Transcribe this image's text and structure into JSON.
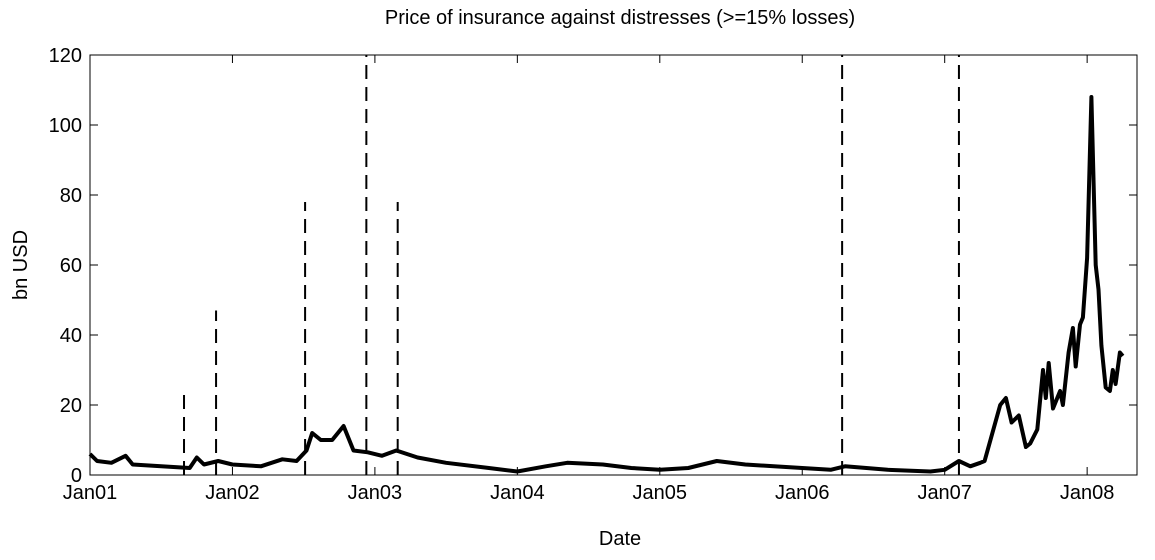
{
  "chart_data": {
    "type": "line",
    "title": "Price of insurance against distresses (>=15% losses)",
    "x_label": "Date",
    "y_label": "bn USD",
    "xlim": [
      2001.0,
      2008.35
    ],
    "ylim": [
      0,
      120
    ],
    "xticks": [
      {
        "value": 2001.0,
        "label": "Jan01"
      },
      {
        "value": 2002.0,
        "label": "Jan02"
      },
      {
        "value": 2003.0,
        "label": "Jan03"
      },
      {
        "value": 2004.0,
        "label": "Jan04"
      },
      {
        "value": 2005.0,
        "label": "Jan05"
      },
      {
        "value": 2006.0,
        "label": "Jan06"
      },
      {
        "value": 2007.0,
        "label": "Jan07"
      },
      {
        "value": 2008.0,
        "label": "Jan08"
      }
    ],
    "yticks": [
      0,
      20,
      40,
      60,
      80,
      100,
      120
    ],
    "event_lines": {
      "x": [
        2001.66,
        2001.885,
        2002.51,
        2002.94,
        2003.16,
        2006.28,
        2007.1
      ],
      "heights": [
        25,
        47,
        78,
        120,
        78,
        120,
        120
      ]
    },
    "series": [
      {
        "color": "#000000",
        "x": [
          2001.0,
          2001.05,
          2001.15,
          2001.25,
          2001.3,
          2001.5,
          2001.7,
          2001.75,
          2001.8,
          2001.9,
          2002.0,
          2002.2,
          2002.35,
          2002.45,
          2002.52,
          2002.56,
          2002.62,
          2002.7,
          2002.78,
          2002.85,
          2002.95,
          2003.05,
          2003.15,
          2003.3,
          2003.5,
          2003.8,
          2004.0,
          2004.2,
          2004.35,
          2004.6,
          2004.8,
          2005.0,
          2005.2,
          2005.4,
          2005.6,
          2005.8,
          2006.0,
          2006.2,
          2006.3,
          2006.6,
          2006.9,
          2007.0,
          2007.1,
          2007.18,
          2007.25,
          2007.28,
          2007.39,
          2007.43,
          2007.47,
          2007.52,
          2007.57,
          2007.6,
          2007.65,
          2007.69,
          2007.71,
          2007.73,
          2007.76,
          2007.81,
          2007.83,
          2007.87,
          2007.9,
          2007.92,
          2007.95,
          2007.97,
          2008.0,
          2008.03,
          2008.06,
          2008.08,
          2008.1,
          2008.13,
          2008.16,
          2008.18,
          2008.2,
          2008.23,
          2008.25
        ],
        "values": [
          6,
          4,
          3.5,
          5.5,
          3,
          2.5,
          2,
          5,
          3,
          4,
          3,
          2.5,
          4.5,
          4,
          7,
          12,
          10,
          10,
          14,
          7,
          6.5,
          5.5,
          7,
          5,
          3.5,
          2,
          1,
          2.5,
          3.5,
          3,
          2,
          1.5,
          2,
          4,
          3,
          2.5,
          2,
          1.5,
          2.5,
          1.5,
          1,
          1.5,
          4,
          2.5,
          3.5,
          4,
          20,
          22,
          15,
          17,
          8,
          9,
          13,
          30,
          22,
          32,
          19,
          24,
          20,
          35,
          42,
          31,
          43,
          45,
          62,
          108,
          60,
          53,
          37,
          25,
          24,
          30,
          26,
          35,
          34
        ]
      }
    ]
  }
}
